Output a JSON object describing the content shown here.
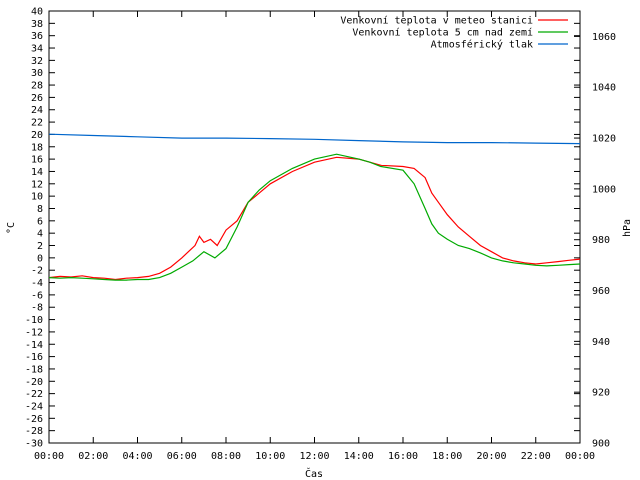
{
  "chart_data": {
    "type": "line",
    "xlabel": "Čas",
    "ylabel": "°C",
    "y2label": "hPa",
    "xlim": [
      0,
      24
    ],
    "ylim": [
      -30,
      40
    ],
    "y2lim": [
      900,
      1070
    ],
    "x_ticks": [
      "00:00",
      "02:00",
      "04:00",
      "06:00",
      "08:00",
      "10:00",
      "12:00",
      "14:00",
      "16:00",
      "18:00",
      "20:00",
      "22:00",
      "00:00"
    ],
    "y_ticks": [
      -30,
      -28,
      -26,
      -24,
      -22,
      -20,
      -18,
      -16,
      -14,
      -12,
      -10,
      -8,
      -6,
      -4,
      -2,
      0,
      2,
      4,
      6,
      8,
      10,
      12,
      14,
      16,
      18,
      20,
      22,
      24,
      26,
      28,
      30,
      32,
      34,
      36,
      38,
      40
    ],
    "y2_ticks": [
      900,
      920,
      940,
      960,
      980,
      1000,
      1020,
      1040,
      1060
    ],
    "grid": false,
    "legend_position": "top-right",
    "series": [
      {
        "name": "Venkovní teplota v meteo stanici",
        "color": "#ff0000",
        "axis": "left",
        "x": [
          0,
          0.5,
          1,
          1.5,
          2,
          2.5,
          3,
          3.5,
          4,
          4.5,
          5,
          5.5,
          6,
          6.3,
          6.6,
          6.8,
          7,
          7.3,
          7.6,
          8,
          8.5,
          9,
          9.5,
          10,
          11,
          12,
          13,
          14,
          14.5,
          15,
          16,
          16.5,
          17,
          17.3,
          17.6,
          18,
          18.5,
          19,
          19.5,
          20,
          20.5,
          21,
          21.5,
          22,
          22.5,
          23,
          23.5,
          24
        ],
        "y": [
          -3.2,
          -3.0,
          -3.1,
          -2.9,
          -3.2,
          -3.3,
          -3.5,
          -3.3,
          -3.2,
          -3.0,
          -2.5,
          -1.5,
          0,
          1.0,
          2.0,
          3.5,
          2.5,
          3.0,
          2.0,
          4.5,
          6,
          9,
          10.5,
          12,
          14,
          15.5,
          16.3,
          16.0,
          15.5,
          15.0,
          14.8,
          14.5,
          13,
          10.5,
          9,
          7,
          5,
          3.5,
          2,
          1,
          0,
          -0.5,
          -0.8,
          -1.0,
          -0.8,
          -0.6,
          -0.4,
          -0.2
        ]
      },
      {
        "name": "Venkovní teplota 5 cm nad zemí",
        "color": "#00aa00",
        "axis": "left",
        "x": [
          0,
          0.5,
          1,
          1.5,
          2,
          2.5,
          3,
          3.5,
          4,
          4.5,
          5,
          5.5,
          6,
          6.5,
          7,
          7.5,
          8,
          8.5,
          9,
          9.5,
          10,
          11,
          12,
          13,
          14,
          14.5,
          15,
          16,
          16.5,
          17,
          17.3,
          17.6,
          18,
          18.5,
          19,
          19.5,
          20,
          20.5,
          21,
          21.5,
          22,
          22.5,
          23,
          23.5,
          24
        ],
        "y": [
          -3.2,
          -3.3,
          -3.2,
          -3.3,
          -3.4,
          -3.5,
          -3.6,
          -3.6,
          -3.5,
          -3.5,
          -3.2,
          -2.5,
          -1.5,
          -0.5,
          1,
          0,
          1.5,
          5,
          9,
          11,
          12.5,
          14.5,
          16,
          16.8,
          16.0,
          15.5,
          14.8,
          14.2,
          12,
          8,
          5.5,
          4,
          3,
          2,
          1.5,
          0.8,
          0,
          -0.5,
          -0.8,
          -1.0,
          -1.2,
          -1.3,
          -1.2,
          -1.1,
          -1.0
        ]
      },
      {
        "name": "Atmosférický tlak",
        "color": "#0066cc",
        "axis": "right",
        "x": [
          0,
          2,
          4,
          6,
          8,
          10,
          12,
          14,
          16,
          18,
          20,
          22,
          24
        ],
        "y": [
          1021.5,
          1021.0,
          1020.5,
          1020.0,
          1020.0,
          1019.8,
          1019.5,
          1019.0,
          1018.5,
          1018.2,
          1018.2,
          1018.0,
          1017.8
        ]
      }
    ]
  }
}
